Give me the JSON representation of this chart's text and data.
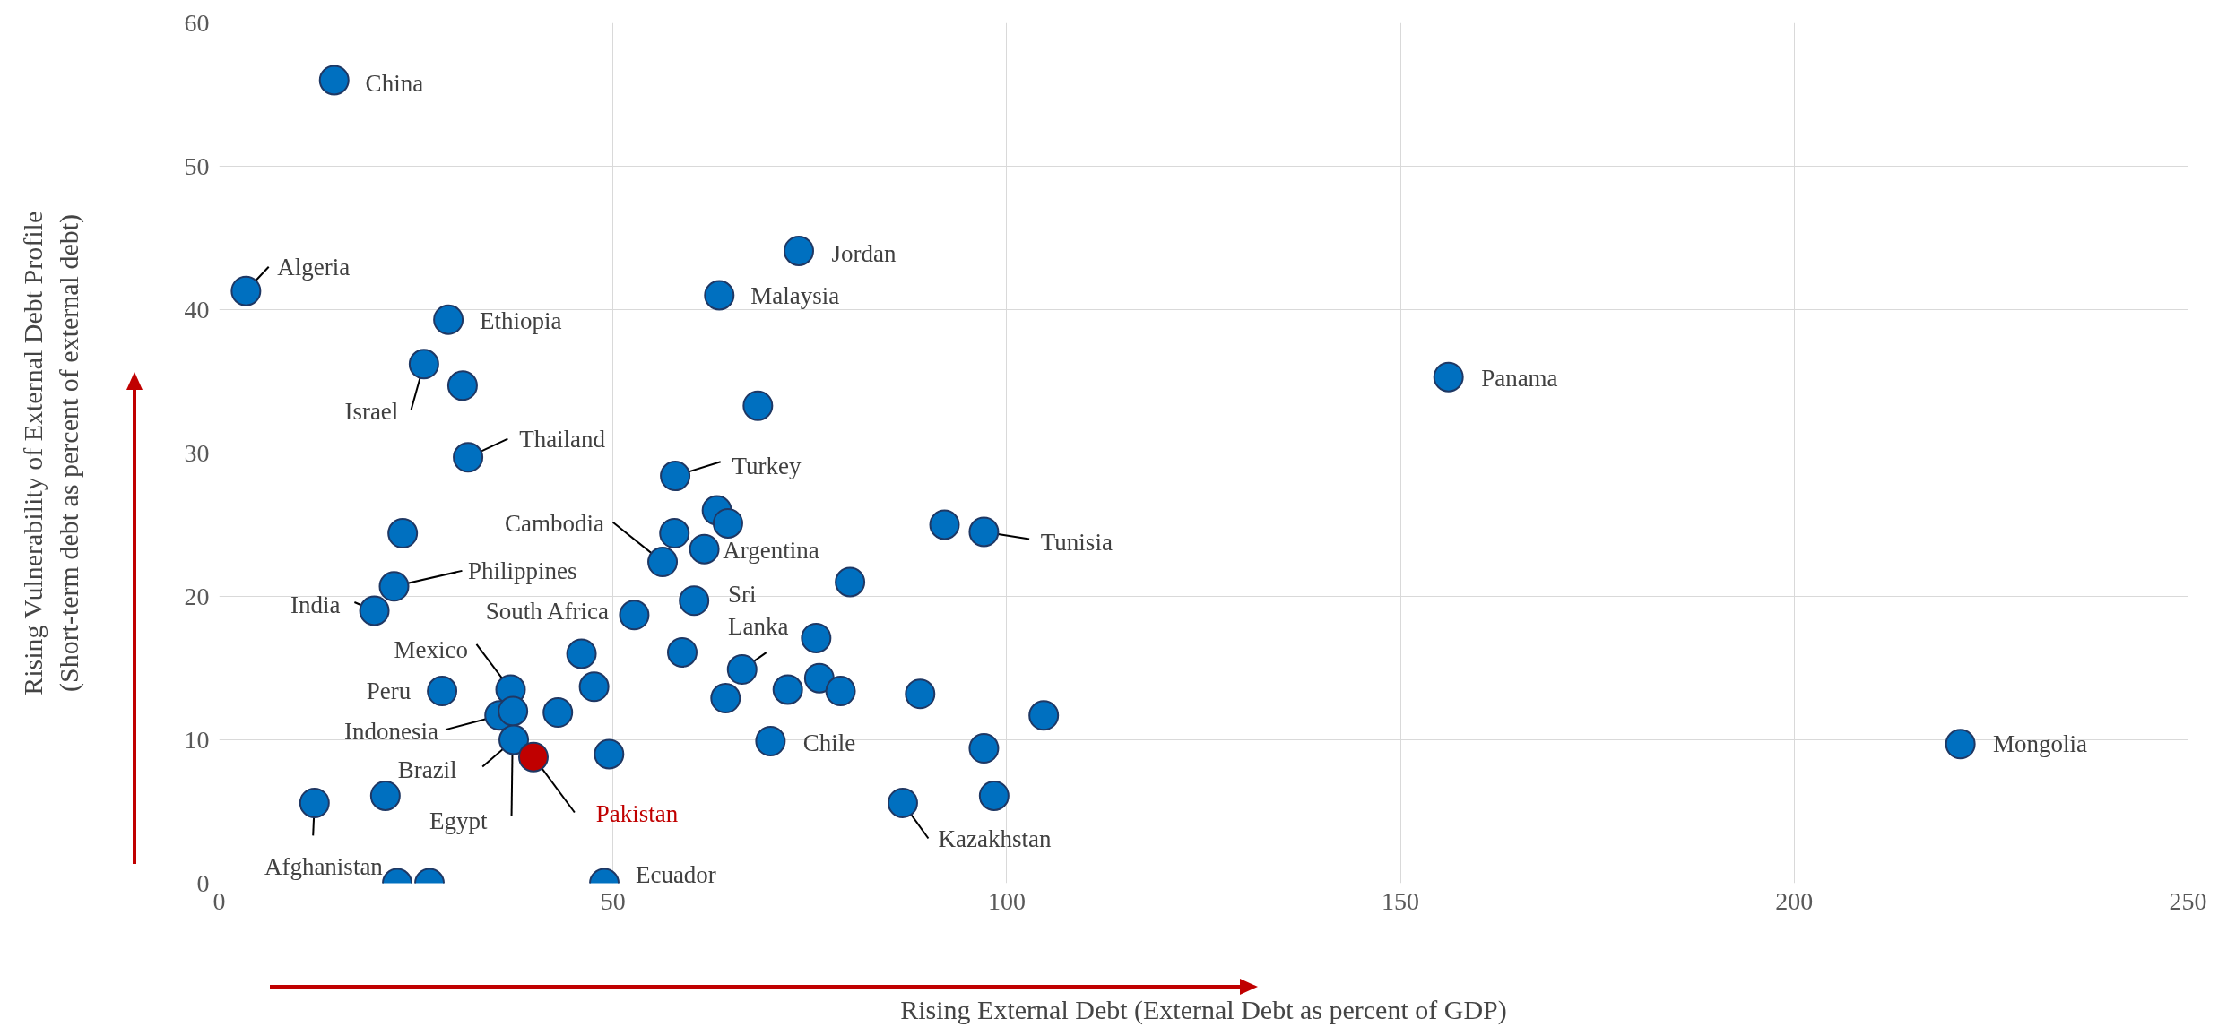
{
  "chart_data": {
    "type": "scatter",
    "xlabel": "Rising External Debt (External Debt as percent of GDP)",
    "ylabel": "Rising Vulnerability of External Debt Profile\n(Short-term debt as percent of external debt)",
    "xlim": [
      0,
      250
    ],
    "xticks": [
      0,
      50,
      100,
      150,
      200,
      250
    ],
    "ylim": [
      0,
      60
    ],
    "yticks": [
      0,
      10,
      20,
      30,
      40,
      50,
      60
    ],
    "grid": true,
    "marker": "circle",
    "series": [
      {
        "color": "#0070c0",
        "x": [
          14.6,
          3.4,
          29.1,
          26.0,
          30.9,
          31.6,
          23.3,
          22.2,
          19.7,
          28.3,
          37.0,
          35.6,
          37.3,
          37.4,
          43.0,
          46.0,
          47.6,
          49.5,
          12.1,
          21.1,
          22.6,
          26.7,
          48.9,
          52.7,
          56.3,
          57.8,
          57.9,
          58.8,
          60.3,
          61.6,
          63.2,
          64.6,
          63.5,
          64.3,
          66.4,
          68.4,
          70.0,
          72.2,
          73.6,
          75.8,
          76.2,
          78.9,
          80.1,
          86.8,
          89.0,
          92.1,
          97.1,
          97.1,
          98.4,
          104.7,
          156.1,
          221.1
        ],
        "values": [
          56.0,
          41.3,
          39.3,
          36.2,
          34.7,
          29.7,
          24.4,
          20.7,
          19.0,
          13.4,
          13.5,
          11.7,
          12.0,
          10.0,
          11.9,
          16.0,
          13.7,
          9.0,
          5.6,
          6.1,
          0,
          0,
          0,
          18.7,
          22.4,
          24.4,
          28.4,
          16.1,
          19.7,
          23.3,
          26.0,
          25.1,
          41.0,
          12.9,
          14.9,
          33.3,
          9.9,
          13.5,
          44.1,
          17.1,
          14.3,
          13.4,
          21.0,
          5.6,
          13.2,
          25.0,
          9.4,
          24.5,
          6.1,
          11.7,
          35.3,
          9.7
        ]
      },
      {
        "name": "Pakistan",
        "color": "#c00000",
        "x": [
          39.9
        ],
        "values": [
          8.8
        ]
      }
    ],
    "annotations": [
      {
        "text": "China",
        "x": 14.6,
        "y": 56.0
      },
      {
        "text": "Algeria",
        "x": 3.4,
        "y": 41.3
      },
      {
        "text": "Ethiopia",
        "x": 29.1,
        "y": 39.3
      },
      {
        "text": "Israel",
        "x": 26.0,
        "y": 36.2
      },
      {
        "text": "Thailand",
        "x": 31.6,
        "y": 29.7
      },
      {
        "text": "Philippines",
        "x": 22.2,
        "y": 20.7
      },
      {
        "text": "India",
        "x": 19.7,
        "y": 19.0
      },
      {
        "text": "Peru",
        "x": 28.3,
        "y": 13.4
      },
      {
        "text": "Mexico",
        "x": 37.0,
        "y": 13.5
      },
      {
        "text": "Indonesia",
        "x": 35.6,
        "y": 11.7
      },
      {
        "text": "Brazil",
        "x": 37.4,
        "y": 10.0
      },
      {
        "text": "Egypt",
        "x": 37.3,
        "y": 12.0
      },
      {
        "text": "Afghanistan",
        "x": 12.1,
        "y": 5.6
      },
      {
        "text": "Ecuador",
        "x": 48.9,
        "y": 0
      },
      {
        "text": "South Africa",
        "x": 52.7,
        "y": 18.7
      },
      {
        "text": "Cambodia",
        "x": 56.3,
        "y": 22.4
      },
      {
        "text": "Turkey",
        "x": 57.9,
        "y": 28.4
      },
      {
        "text": "Argentina",
        "x": 61.6,
        "y": 23.3
      },
      {
        "text": "Sri Lanka",
        "x": 66.4,
        "y": 14.9
      },
      {
        "text": "Malaysia",
        "x": 63.5,
        "y": 41.0
      },
      {
        "text": "Jordan",
        "x": 73.6,
        "y": 44.1
      },
      {
        "text": "Chile",
        "x": 70.0,
        "y": 9.9
      },
      {
        "text": "Kazakhstan",
        "x": 86.8,
        "y": 5.6
      },
      {
        "text": "Tunisia",
        "x": 97.1,
        "y": 24.5
      },
      {
        "text": "Panama",
        "x": 156.1,
        "y": 35.3
      },
      {
        "text": "Mongolia",
        "x": 221.1,
        "y": 9.7
      }
    ]
  }
}
